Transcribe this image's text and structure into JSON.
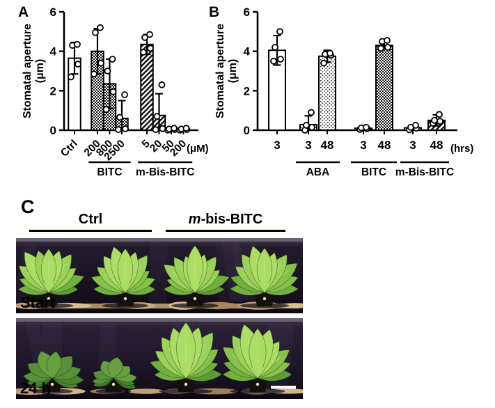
{
  "panels": {
    "a": "A",
    "b": "B",
    "c": "C"
  },
  "chart_data": [
    {
      "id": "A",
      "type": "bar",
      "title": "",
      "ylabel_lines": [
        "Stomatal aperture",
        "(μm)"
      ],
      "ylim": [
        0,
        6
      ],
      "yticks": [
        0,
        2,
        4,
        6
      ],
      "unit_label": "(μM)",
      "bars": [
        {
          "label": "Ctrl",
          "value": 3.65,
          "sd": 0.8,
          "points": [
            2.7,
            3.35,
            4.3,
            4.35
          ],
          "pattern": "plain"
        },
        {
          "label": "200",
          "value": 4.0,
          "sd": 1.15,
          "points": [
            2.85,
            3.4,
            4.95,
            5.2
          ],
          "pattern": "dense"
        },
        {
          "label": "800",
          "value": 2.35,
          "sd": 1.25,
          "points": [
            1.05,
            1.95,
            3.0,
            3.6
          ],
          "pattern": "dense"
        },
        {
          "label": "2500",
          "value": 0.6,
          "sd": 0.9,
          "points": [
            0.03,
            0.07,
            0.65,
            1.8
          ],
          "pattern": "dense"
        },
        {
          "label": "5",
          "value": 4.35,
          "sd": 0.5,
          "points": [
            3.95,
            4.15,
            4.7,
            4.85
          ],
          "pattern": "hatch"
        },
        {
          "label": "20",
          "value": 0.75,
          "sd": 1.1,
          "points": [
            0.03,
            0.08,
            0.7,
            2.3
          ],
          "pattern": "hatch"
        },
        {
          "label": "50",
          "value": 0.05,
          "sd": 0.07,
          "points": [
            0.0,
            0.03,
            0.06,
            0.1
          ],
          "pattern": "hatch"
        },
        {
          "label": "200",
          "value": 0.05,
          "sd": 0.07,
          "points": [
            0.0,
            0.03,
            0.06,
            0.1
          ],
          "pattern": "hatch"
        }
      ],
      "groups": [
        {
          "label": "BITC",
          "from": 1,
          "to": 3
        },
        {
          "label": "m-Bis-BITC",
          "from": 4,
          "to": 7
        }
      ]
    },
    {
      "id": "B",
      "type": "bar",
      "title": "",
      "ylabel_lines": [
        "Stomatal aperture",
        "(μm)"
      ],
      "ylim": [
        0,
        6
      ],
      "yticks": [
        0,
        2,
        4,
        6
      ],
      "unit_label": "(hrs)",
      "bars": [
        {
          "label": "3",
          "value": 4.05,
          "sd": 0.75,
          "points": [
            3.5,
            3.6,
            4.2,
            5.0
          ],
          "pattern": "plain"
        },
        {
          "label": "3",
          "value": 0.28,
          "sd": 0.45,
          "points": [
            0.0,
            0.15,
            0.25,
            0.9
          ],
          "pattern": "light"
        },
        {
          "label": "48",
          "value": 3.75,
          "sd": 0.3,
          "points": [
            3.4,
            3.8,
            3.85,
            3.9
          ],
          "pattern": "light"
        },
        {
          "label": "3",
          "value": 0.1,
          "sd": 0.06,
          "points": [
            0.04,
            0.08,
            0.12,
            0.15
          ],
          "pattern": "dense"
        },
        {
          "label": "48",
          "value": 4.3,
          "sd": 0.18,
          "points": [
            4.15,
            4.2,
            4.5,
            4.55
          ],
          "pattern": "dense"
        },
        {
          "label": "3",
          "value": 0.12,
          "sd": 0.12,
          "points": [
            0.02,
            0.1,
            0.15,
            0.25
          ],
          "pattern": "hatch"
        },
        {
          "label": "48",
          "value": 0.5,
          "sd": 0.28,
          "points": [
            0.35,
            0.45,
            0.5,
            0.8
          ],
          "pattern": "hatch"
        }
      ],
      "groups": [
        {
          "label": "ABA",
          "from": 1,
          "to": 2
        },
        {
          "label": "BITC",
          "from": 3,
          "to": 4
        },
        {
          "label": "m-Bis-BITC",
          "from": 5,
          "to": 6
        }
      ]
    }
  ],
  "panel_c": {
    "col_labels": [
      {
        "italic": "",
        "text": "Ctrl"
      },
      {
        "italic": "m",
        "text": "-bis-BITC"
      }
    ],
    "photos": [
      {
        "tag": "Start",
        "scalebar": false,
        "plants": [
          {
            "x": 47,
            "size": 64,
            "wilt": 0
          },
          {
            "x": 157,
            "size": 60,
            "wilt": 0
          },
          {
            "x": 257,
            "size": 62,
            "wilt": 0
          },
          {
            "x": 357,
            "size": 64,
            "wilt": 0
          }
        ]
      },
      {
        "tag": "24 h",
        "scalebar": true,
        "plants": [
          {
            "x": 52,
            "size": 54,
            "wilt": 0.55
          },
          {
            "x": 140,
            "size": 46,
            "wilt": 0.85
          },
          {
            "x": 244,
            "size": 70,
            "wilt": 0
          },
          {
            "x": 347,
            "size": 72,
            "wilt": 0
          }
        ]
      }
    ],
    "photo_colors": {
      "backdrop_top": "#6e6876",
      "soil": "#c9a77b",
      "soil_light": "#dcbd91",
      "soil_dark": "#a8865c",
      "pot": "#131109",
      "pot_dot": "#e8e8e8",
      "leaf_greens": [
        "#4e8a2f",
        "#5f9c36",
        "#72b140",
        "#86c24b",
        "#9bd158",
        "#abdc63"
      ],
      "leaf_wilt": [
        "#3f7429",
        "#4a8230",
        "#589138",
        "#66a040"
      ],
      "vein": "#d8eca0",
      "label_color": "#ffffff"
    }
  }
}
